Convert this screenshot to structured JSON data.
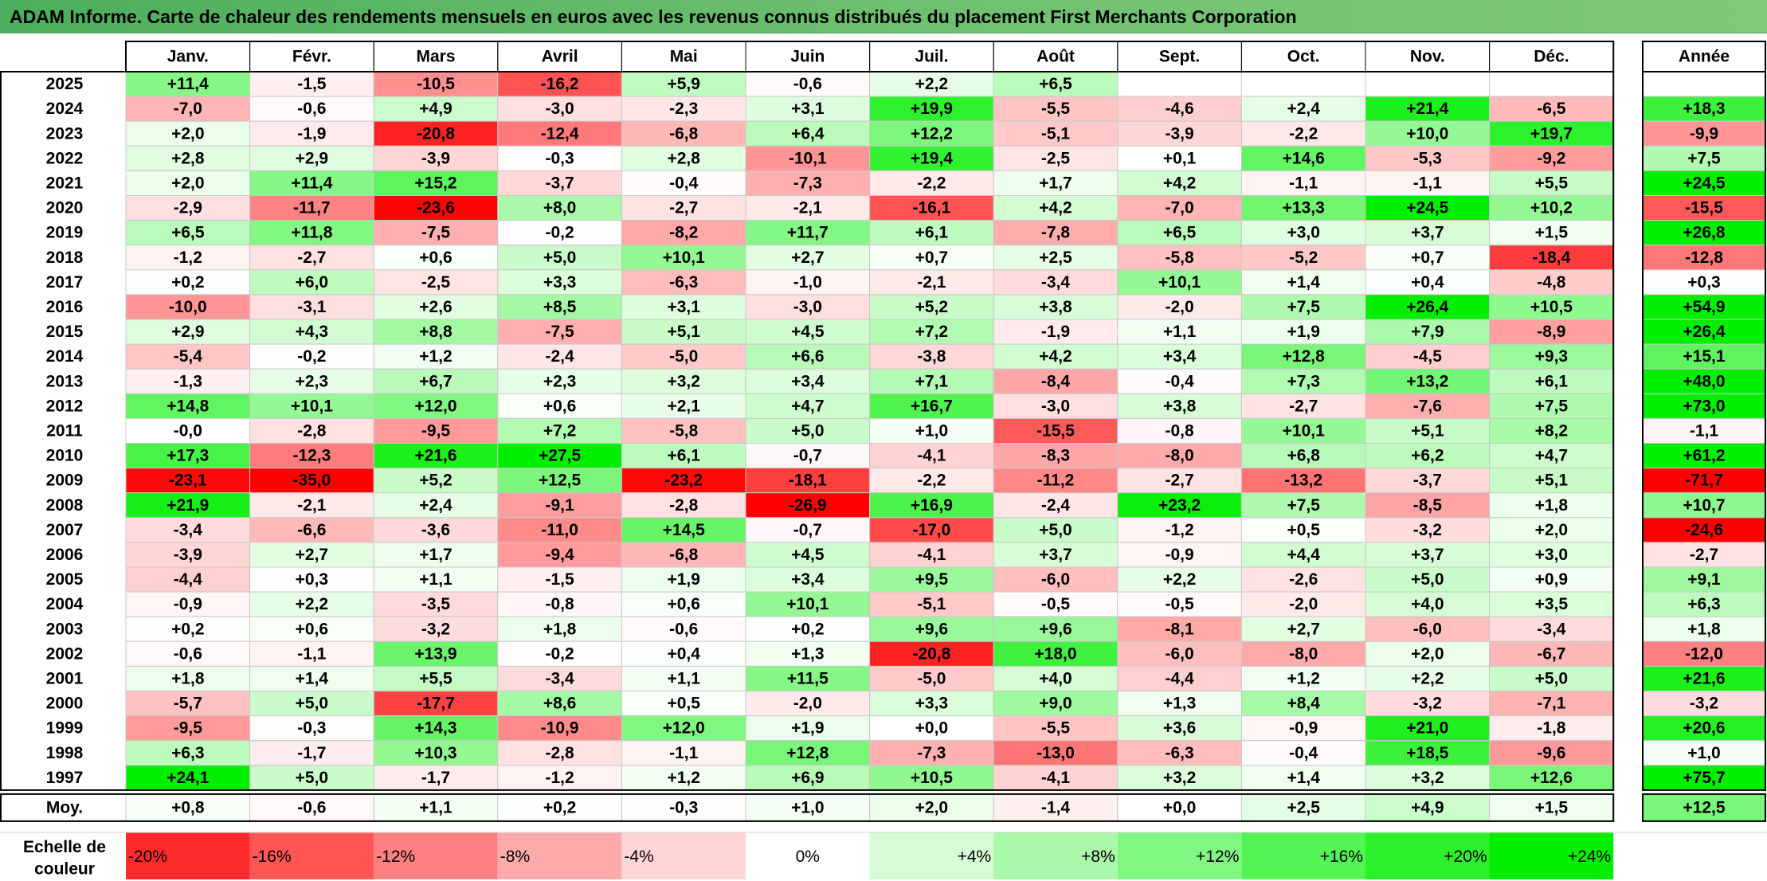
{
  "title": "ADAM Informe. Carte de chaleur des rendements mensuels en euros avec les revenus connus distribués du placement First Merchants Corporation",
  "chart_data": {
    "type": "heatmap",
    "columns": [
      "Janv.",
      "Févr.",
      "Mars",
      "Avril",
      "Mai",
      "Juin",
      "Juil.",
      "Août",
      "Sept.",
      "Oct.",
      "Nov.",
      "Déc."
    ],
    "year_column_label": "Année",
    "rows": [
      {
        "year": "2025",
        "values": [
          "+11,4",
          "-1,5",
          "-10,5",
          "-16,2",
          "+5,9",
          "-0,6",
          "+2,2",
          "+6,5",
          "",
          "",
          "",
          ""
        ],
        "annual": ""
      },
      {
        "year": "2024",
        "values": [
          "-7,0",
          "-0,6",
          "+4,9",
          "-3,0",
          "-2,3",
          "+3,1",
          "+19,9",
          "-5,5",
          "-4,6",
          "+2,4",
          "+21,4",
          "-6,5"
        ],
        "annual": "+18,3"
      },
      {
        "year": "2023",
        "values": [
          "+2,0",
          "-1,9",
          "-20,8",
          "-12,4",
          "-6,8",
          "+6,4",
          "+12,2",
          "-5,1",
          "-3,9",
          "-2,2",
          "+10,0",
          "+19,7"
        ],
        "annual": "-9,9"
      },
      {
        "year": "2022",
        "values": [
          "+2,8",
          "+2,9",
          "-3,9",
          "-0,3",
          "+2,8",
          "-10,1",
          "+19,4",
          "-2,5",
          "+0,1",
          "+14,6",
          "-5,3",
          "-9,2"
        ],
        "annual": "+7,5"
      },
      {
        "year": "2021",
        "values": [
          "+2,0",
          "+11,4",
          "+15,2",
          "-3,7",
          "-0,4",
          "-7,3",
          "-2,2",
          "+1,7",
          "+4,2",
          "-1,1",
          "-1,1",
          "+5,5"
        ],
        "annual": "+24,5"
      },
      {
        "year": "2020",
        "values": [
          "-2,9",
          "-11,7",
          "-23,6",
          "+8,0",
          "-2,7",
          "-2,1",
          "-16,1",
          "+4,2",
          "-7,0",
          "+13,3",
          "+24,5",
          "+10,2"
        ],
        "annual": "-15,5"
      },
      {
        "year": "2019",
        "values": [
          "+6,5",
          "+11,8",
          "-7,5",
          "-0,2",
          "-8,2",
          "+11,7",
          "+6,1",
          "-7,8",
          "+6,5",
          "+3,0",
          "+3,7",
          "+1,5"
        ],
        "annual": "+26,8"
      },
      {
        "year": "2018",
        "values": [
          "-1,2",
          "-2,7",
          "+0,6",
          "+5,0",
          "+10,1",
          "+2,7",
          "+0,7",
          "+2,5",
          "-5,8",
          "-5,2",
          "+0,7",
          "-18,4"
        ],
        "annual": "-12,8"
      },
      {
        "year": "2017",
        "values": [
          "+0,2",
          "+6,0",
          "-2,5",
          "+3,3",
          "-6,3",
          "-1,0",
          "-2,1",
          "-3,4",
          "+10,1",
          "+1,4",
          "+0,4",
          "-4,8"
        ],
        "annual": "+0,3"
      },
      {
        "year": "2016",
        "values": [
          "-10,0",
          "-3,1",
          "+2,6",
          "+8,5",
          "+3,1",
          "-3,0",
          "+5,2",
          "+3,8",
          "-2,0",
          "+7,5",
          "+26,4",
          "+10,5"
        ],
        "annual": "+54,9"
      },
      {
        "year": "2015",
        "values": [
          "+2,9",
          "+4,3",
          "+8,8",
          "-7,5",
          "+5,1",
          "+4,5",
          "+7,2",
          "-1,9",
          "+1,1",
          "+1,9",
          "+7,9",
          "-8,9"
        ],
        "annual": "+26,4"
      },
      {
        "year": "2014",
        "values": [
          "-5,4",
          "-0,2",
          "+1,2",
          "-2,4",
          "-5,0",
          "+6,6",
          "-3,8",
          "+4,2",
          "+3,4",
          "+12,8",
          "-4,5",
          "+9,3"
        ],
        "annual": "+15,1"
      },
      {
        "year": "2013",
        "values": [
          "-1,3",
          "+2,3",
          "+6,7",
          "+2,3",
          "+3,2",
          "+3,4",
          "+7,1",
          "-8,4",
          "-0,4",
          "+7,3",
          "+13,2",
          "+6,1"
        ],
        "annual": "+48,0"
      },
      {
        "year": "2012",
        "values": [
          "+14,8",
          "+10,1",
          "+12,0",
          "+0,6",
          "+2,1",
          "+4,7",
          "+16,7",
          "-3,0",
          "+3,8",
          "-2,7",
          "-7,6",
          "+7,5"
        ],
        "annual": "+73,0"
      },
      {
        "year": "2011",
        "values": [
          "-0,0",
          "-2,8",
          "-9,5",
          "+7,2",
          "-5,8",
          "+5,0",
          "+1,0",
          "-15,5",
          "-0,8",
          "+10,1",
          "+5,1",
          "+8,2"
        ],
        "annual": "-1,1"
      },
      {
        "year": "2010",
        "values": [
          "+17,3",
          "-12,3",
          "+21,6",
          "+27,5",
          "+6,1",
          "-0,7",
          "-4,1",
          "-8,3",
          "-8,0",
          "+6,8",
          "+6,2",
          "+4,7"
        ],
        "annual": "+61,2"
      },
      {
        "year": "2009",
        "values": [
          "-23,1",
          "-35,0",
          "+5,2",
          "+12,5",
          "-23,2",
          "-18,1",
          "-2,2",
          "-11,2",
          "-2,7",
          "-13,2",
          "-3,7",
          "+5,1"
        ],
        "annual": "-71,7"
      },
      {
        "year": "2008",
        "values": [
          "+21,9",
          "-2,1",
          "+2,4",
          "-9,1",
          "-2,8",
          "-26,9",
          "+16,9",
          "-2,4",
          "+23,2",
          "+7,5",
          "-8,5",
          "+1,8"
        ],
        "annual": "+10,7"
      },
      {
        "year": "2007",
        "values": [
          "-3,4",
          "-6,6",
          "-3,6",
          "-11,0",
          "+14,5",
          "-0,7",
          "-17,0",
          "+5,0",
          "-1,2",
          "+0,5",
          "-3,2",
          "+2,0"
        ],
        "annual": "-24,6"
      },
      {
        "year": "2006",
        "values": [
          "-3,9",
          "+2,7",
          "+1,7",
          "-9,4",
          "-6,8",
          "+4,5",
          "-4,1",
          "+3,7",
          "-0,9",
          "+4,4",
          "+3,7",
          "+3,0"
        ],
        "annual": "-2,7"
      },
      {
        "year": "2005",
        "values": [
          "-4,4",
          "+0,3",
          "+1,1",
          "-1,5",
          "+1,9",
          "+3,4",
          "+9,5",
          "-6,0",
          "+2,2",
          "-2,6",
          "+5,0",
          "+0,9"
        ],
        "annual": "+9,1"
      },
      {
        "year": "2004",
        "values": [
          "-0,9",
          "+2,2",
          "-3,5",
          "-0,8",
          "+0,6",
          "+10,1",
          "-5,1",
          "-0,5",
          "-0,5",
          "-2,0",
          "+4,0",
          "+3,5"
        ],
        "annual": "+6,3"
      },
      {
        "year": "2003",
        "values": [
          "+0,2",
          "+0,6",
          "-3,2",
          "+1,8",
          "-0,6",
          "+0,2",
          "+9,6",
          "+9,6",
          "-8,1",
          "+2,7",
          "-6,0",
          "-3,4"
        ],
        "annual": "+1,8"
      },
      {
        "year": "2002",
        "values": [
          "-0,6",
          "-1,1",
          "+13,9",
          "-0,2",
          "+0,4",
          "+1,3",
          "-20,8",
          "+18,0",
          "-6,0",
          "-8,0",
          "+2,0",
          "-6,7"
        ],
        "annual": "-12,0"
      },
      {
        "year": "2001",
        "values": [
          "+1,8",
          "+1,4",
          "+5,5",
          "-3,4",
          "+1,1",
          "+11,5",
          "-5,0",
          "+4,0",
          "-4,4",
          "+1,2",
          "+2,2",
          "+5,0"
        ],
        "annual": "+21,6"
      },
      {
        "year": "2000",
        "values": [
          "-5,7",
          "+5,0",
          "-17,7",
          "+8,6",
          "+0,5",
          "-2,0",
          "+3,3",
          "+9,0",
          "+1,3",
          "+8,4",
          "-3,2",
          "-7,1"
        ],
        "annual": "-3,2"
      },
      {
        "year": "1999",
        "values": [
          "-9,5",
          "-0,3",
          "+14,3",
          "-10,9",
          "+12,0",
          "+1,9",
          "+0,0",
          "-5,5",
          "+3,6",
          "-0,9",
          "+21,0",
          "-1,8"
        ],
        "annual": "+20,6"
      },
      {
        "year": "1998",
        "values": [
          "+6,3",
          "-1,7",
          "+10,3",
          "-2,8",
          "-1,1",
          "+12,8",
          "-7,3",
          "-13,0",
          "-6,3",
          "-0,4",
          "+18,5",
          "-9,6"
        ],
        "annual": "+1,0"
      },
      {
        "year": "1997",
        "values": [
          "+24,1",
          "+5,0",
          "-1,7",
          "-1,2",
          "+1,2",
          "+6,9",
          "+10,5",
          "-4,1",
          "+3,2",
          "+1,4",
          "+3,2",
          "+12,6"
        ],
        "annual": "+75,7"
      }
    ],
    "average_row": {
      "label": "Moy.",
      "values": [
        "+0,8",
        "-0,6",
        "+1,1",
        "+0,2",
        "-0,3",
        "+1,0",
        "+2,0",
        "-1,4",
        "+0,0",
        "+2,5",
        "+4,9",
        "+1,5"
      ],
      "annual": "+12,5"
    },
    "scale": {
      "label_line1": "Echelle de",
      "label_line2": "couleur",
      "steps": [
        {
          "label": "-20%",
          "value": -20
        },
        {
          "label": "-16%",
          "value": -16
        },
        {
          "label": "-12%",
          "value": -12
        },
        {
          "label": "-8%",
          "value": -8
        },
        {
          "label": "-4%",
          "value": -4
        },
        {
          "label": "0%",
          "value": 0
        },
        {
          "label": "+4%",
          "value": 4
        },
        {
          "label": "+8%",
          "value": 8
        },
        {
          "label": "+12%",
          "value": 12
        },
        {
          "label": "+16%",
          "value": 16
        },
        {
          "label": "+20%",
          "value": 20
        },
        {
          "label": "+24%",
          "value": 24
        }
      ]
    },
    "colors": {
      "strong_negative": "#ff0000",
      "neutral": "#ffffff",
      "strong_positive": "#00ee00",
      "title_bar": "#6fc170"
    }
  }
}
